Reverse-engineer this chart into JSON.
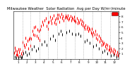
{
  "title": "Milwaukee Weather  Solar Radiation  Avg per Day W/m²/minute",
  "background_color": "#ffffff",
  "plot_bg_color": "#ffffff",
  "grid_color": "#999999",
  "marker_color": "#ff0000",
  "marker_color2": "#000000",
  "legend_color": "#ff0000",
  "months": [
    "1",
    "2",
    "3",
    "4",
    "5",
    "6",
    "7",
    "8",
    "9",
    "10",
    "11",
    "12"
  ],
  "month_boundaries": [
    0,
    31,
    59,
    90,
    120,
    151,
    181,
    212,
    243,
    273,
    304,
    334,
    365
  ],
  "ylim": [
    0,
    9
  ],
  "yticks": [
    1,
    2,
    3,
    4,
    5,
    6,
    7,
    8
  ],
  "title_fontsize": 3.8,
  "tick_fontsize": 3.0,
  "data_red": [
    [
      2,
      1.2
    ],
    [
      4,
      2.1
    ],
    [
      6,
      1.6
    ],
    [
      8,
      0.8
    ],
    [
      10,
      1.4
    ],
    [
      12,
      0.9
    ],
    [
      14,
      0.6
    ],
    [
      16,
      1.8
    ],
    [
      18,
      1.3
    ],
    [
      20,
      0.5
    ],
    [
      22,
      1.8
    ],
    [
      25,
      1.0
    ],
    [
      28,
      0.7
    ],
    [
      30,
      1.5
    ],
    [
      32,
      3.2
    ],
    [
      35,
      2.6
    ],
    [
      38,
      2.2
    ],
    [
      41,
      3.9
    ],
    [
      44,
      2.8
    ],
    [
      47,
      3.4
    ],
    [
      50,
      2.0
    ],
    [
      53,
      3.7
    ],
    [
      56,
      3.9
    ],
    [
      58,
      2.5
    ],
    [
      61,
      3.8
    ],
    [
      64,
      5.2
    ],
    [
      67,
      4.6
    ],
    [
      70,
      5.9
    ],
    [
      73,
      4.5
    ],
    [
      76,
      6.0
    ],
    [
      79,
      4.3
    ],
    [
      82,
      5.5
    ],
    [
      85,
      3.9
    ],
    [
      88,
      5.2
    ],
    [
      89,
      3.5
    ],
    [
      91,
      5.5
    ],
    [
      95,
      6.2
    ],
    [
      99,
      7.0
    ],
    [
      103,
      6.5
    ],
    [
      107,
      7.2
    ],
    [
      111,
      7.6
    ],
    [
      115,
      6.2
    ],
    [
      118,
      5.7
    ],
    [
      119,
      6.9
    ],
    [
      122,
      7.0
    ],
    [
      126,
      7.9
    ],
    [
      129,
      7.3
    ],
    [
      132,
      6.7
    ],
    [
      135,
      7.6
    ],
    [
      138,
      8.1
    ],
    [
      141,
      6.9
    ],
    [
      144,
      7.4
    ],
    [
      147,
      6.6
    ],
    [
      149,
      7.7
    ],
    [
      151,
      8.3
    ],
    [
      153,
      7.6
    ],
    [
      156,
      8.3
    ],
    [
      159,
      7.0
    ],
    [
      162,
      7.9
    ],
    [
      165,
      8.4
    ],
    [
      168,
      7.7
    ],
    [
      171,
      8.0
    ],
    [
      174,
      7.3
    ],
    [
      177,
      7.8
    ],
    [
      180,
      8.2
    ],
    [
      182,
      7.9
    ],
    [
      185,
      7.6
    ],
    [
      188,
      8.1
    ],
    [
      191,
      7.4
    ],
    [
      194,
      7.7
    ],
    [
      197,
      8.0
    ],
    [
      200,
      7.3
    ],
    [
      203,
      7.8
    ],
    [
      206,
      7.5
    ],
    [
      209,
      7.9
    ],
    [
      211,
      7.2
    ],
    [
      213,
      7.3
    ],
    [
      216,
      7.0
    ],
    [
      219,
      7.6
    ],
    [
      222,
      6.7
    ],
    [
      225,
      7.2
    ],
    [
      228,
      6.9
    ],
    [
      231,
      7.4
    ],
    [
      234,
      6.6
    ],
    [
      237,
      7.1
    ],
    [
      240,
      6.3
    ],
    [
      242,
      6.8
    ],
    [
      244,
      6.0
    ],
    [
      247,
      5.6
    ],
    [
      250,
      6.3
    ],
    [
      253,
      5.7
    ],
    [
      256,
      6.1
    ],
    [
      259,
      5.3
    ],
    [
      262,
      5.8
    ],
    [
      265,
      5.5
    ],
    [
      268,
      5.0
    ],
    [
      271,
      5.6
    ],
    [
      272,
      4.7
    ],
    [
      274,
      4.3
    ],
    [
      277,
      5.0
    ],
    [
      280,
      4.6
    ],
    [
      283,
      5.3
    ],
    [
      286,
      3.9
    ],
    [
      289,
      4.6
    ],
    [
      292,
      3.7
    ],
    [
      295,
      4.3
    ],
    [
      298,
      3.3
    ],
    [
      301,
      4.0
    ],
    [
      303,
      3.6
    ],
    [
      305,
      2.6
    ],
    [
      308,
      3.3
    ],
    [
      311,
      2.7
    ],
    [
      314,
      3.0
    ],
    [
      317,
      2.3
    ],
    [
      320,
      2.8
    ],
    [
      323,
      2.0
    ],
    [
      326,
      2.6
    ],
    [
      329,
      1.7
    ],
    [
      332,
      2.3
    ],
    [
      333,
      1.8
    ],
    [
      335,
      1.3
    ],
    [
      338,
      2.0
    ],
    [
      341,
      1.6
    ],
    [
      344,
      1.3
    ],
    [
      347,
      1.8
    ],
    [
      350,
      1.0
    ],
    [
      353,
      1.6
    ],
    [
      356,
      0.8
    ],
    [
      359,
      1.3
    ],
    [
      362,
      0.6
    ],
    [
      364,
      1.0
    ]
  ],
  "data_black": [
    [
      3,
      0.4
    ],
    [
      9,
      0.2
    ],
    [
      15,
      0.3
    ],
    [
      21,
      0.5
    ],
    [
      26,
      0.2
    ],
    [
      29,
      0.4
    ],
    [
      33,
      1.0
    ],
    [
      40,
      1.3
    ],
    [
      46,
      0.8
    ],
    [
      54,
      1.1
    ],
    [
      63,
      1.8
    ],
    [
      71,
      2.3
    ],
    [
      78,
      1.6
    ],
    [
      86,
      2.0
    ],
    [
      96,
      2.8
    ],
    [
      106,
      3.3
    ],
    [
      114,
      2.6
    ],
    [
      126,
      3.8
    ],
    [
      136,
      4.3
    ],
    [
      143,
      3.6
    ],
    [
      155,
      4.8
    ],
    [
      163,
      5.3
    ],
    [
      169,
      4.6
    ],
    [
      184,
      5.0
    ],
    [
      194,
      5.3
    ],
    [
      202,
      4.7
    ],
    [
      215,
      4.6
    ],
    [
      225,
      4.8
    ],
    [
      233,
      4.3
    ],
    [
      246,
      3.3
    ],
    [
      255,
      3.6
    ],
    [
      264,
      3.0
    ],
    [
      276,
      2.3
    ],
    [
      286,
      2.6
    ],
    [
      295,
      2.0
    ],
    [
      307,
      1.3
    ],
    [
      316,
      1.6
    ],
    [
      326,
      1.0
    ],
    [
      337,
      0.6
    ],
    [
      347,
      0.8
    ],
    [
      356,
      0.4
    ]
  ]
}
